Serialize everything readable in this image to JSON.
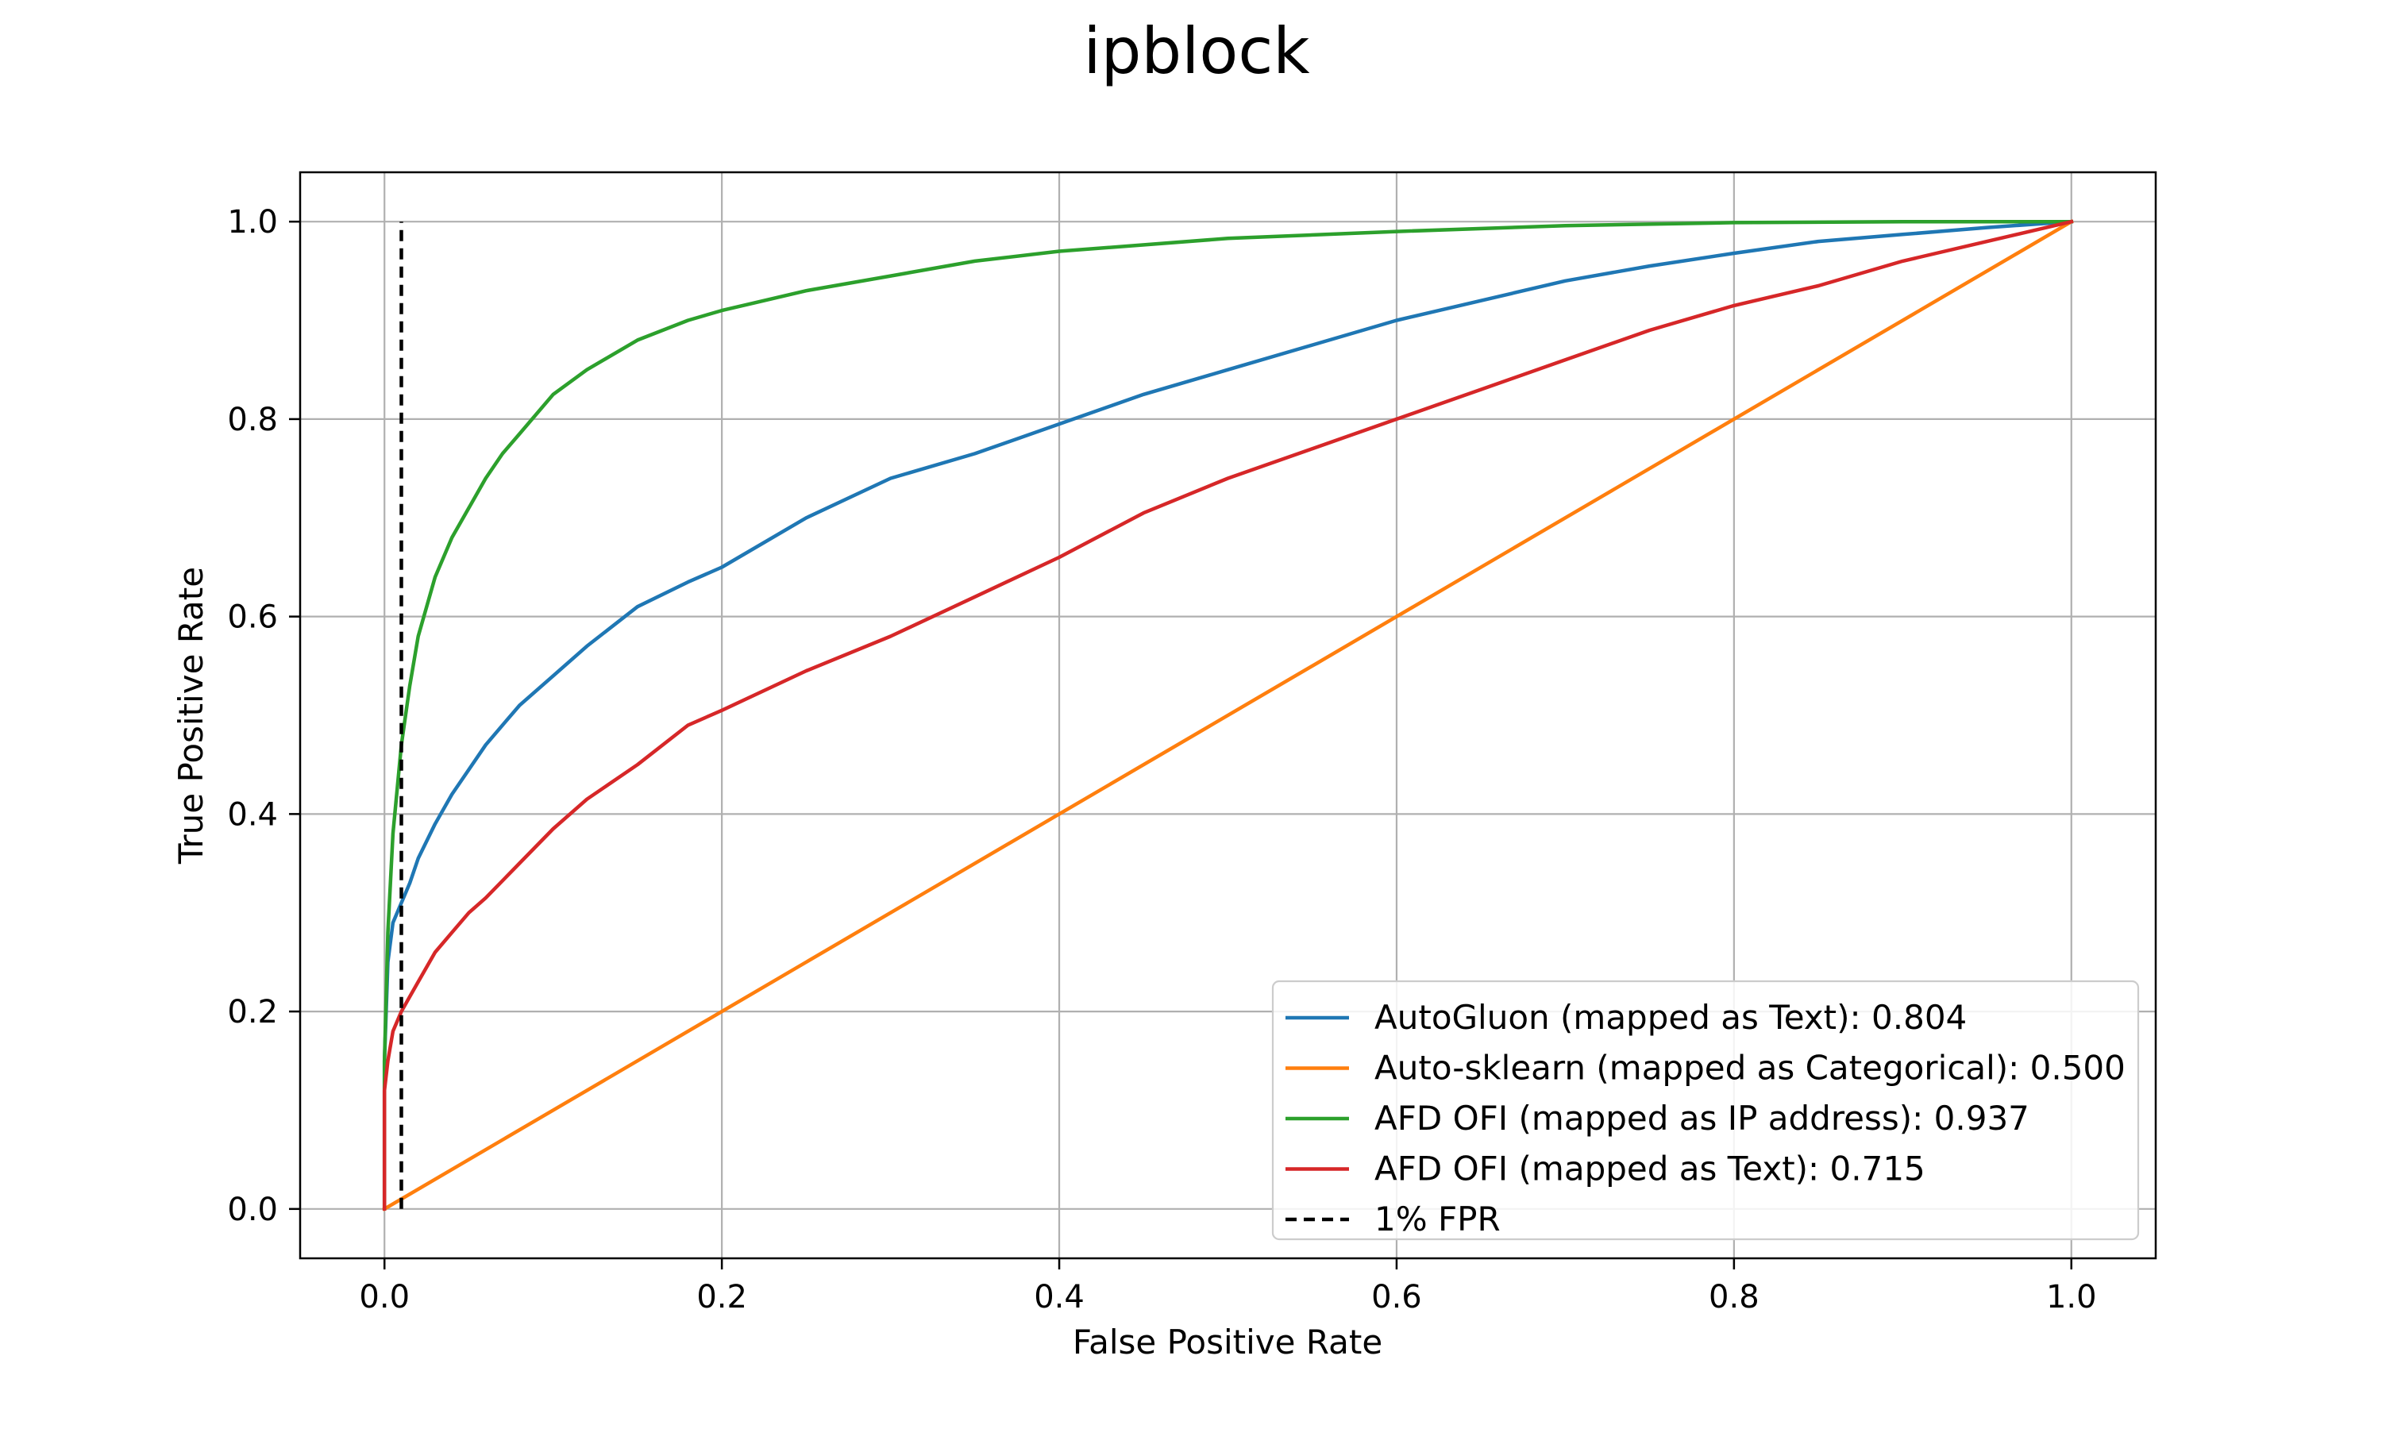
{
  "chart_data": {
    "type": "line",
    "title": "ipblock",
    "xlabel": "False Positive Rate",
    "ylabel": "True Positive Rate",
    "xlim": [
      -0.05,
      1.05
    ],
    "ylim": [
      -0.05,
      1.05
    ],
    "xticks": [
      0.0,
      0.2,
      0.4,
      0.6,
      0.8,
      1.0
    ],
    "yticks": [
      0.0,
      0.2,
      0.4,
      0.6,
      0.8,
      1.0
    ],
    "xtick_labels": [
      "0.0",
      "0.2",
      "0.4",
      "0.6",
      "0.8",
      "1.0"
    ],
    "ytick_labels": [
      "0.0",
      "0.2",
      "0.4",
      "0.6",
      "0.8",
      "1.0"
    ],
    "grid": true,
    "legend_position": "bottom-right",
    "series": [
      {
        "name": "AutoGluon (mapped as Text): 0.804",
        "color": "#1f77b4",
        "dash": "solid",
        "x": [
          0,
          0,
          0.002,
          0.005,
          0.01,
          0.015,
          0.02,
          0.03,
          0.04,
          0.05,
          0.06,
          0.07,
          0.08,
          0.1,
          0.12,
          0.15,
          0.18,
          0.2,
          0.25,
          0.3,
          0.35,
          0.4,
          0.45,
          0.5,
          0.55,
          0.6,
          0.65,
          0.7,
          0.75,
          0.8,
          0.85,
          0.9,
          0.95,
          1.0
        ],
        "y": [
          0,
          0.15,
          0.25,
          0.29,
          0.31,
          0.33,
          0.355,
          0.39,
          0.42,
          0.445,
          0.47,
          0.49,
          0.51,
          0.54,
          0.57,
          0.61,
          0.635,
          0.65,
          0.7,
          0.74,
          0.765,
          0.795,
          0.825,
          0.85,
          0.875,
          0.9,
          0.92,
          0.94,
          0.955,
          0.968,
          0.98,
          0.987,
          0.994,
          1.0
        ]
      },
      {
        "name": "Auto-sklearn (mapped as Categorical): 0.500",
        "color": "#ff7f0e",
        "dash": "solid",
        "x": [
          0,
          1.0
        ],
        "y": [
          0,
          1.0
        ]
      },
      {
        "name": "AFD OFI (mapped as IP address): 0.937",
        "color": "#2ca02c",
        "dash": "solid",
        "x": [
          0,
          0,
          0.002,
          0.005,
          0.01,
          0.015,
          0.02,
          0.03,
          0.04,
          0.05,
          0.06,
          0.07,
          0.08,
          0.1,
          0.12,
          0.15,
          0.18,
          0.2,
          0.25,
          0.3,
          0.35,
          0.4,
          0.5,
          0.6,
          0.7,
          0.8,
          0.9,
          1.0
        ],
        "y": [
          0,
          0.15,
          0.28,
          0.38,
          0.47,
          0.53,
          0.58,
          0.64,
          0.68,
          0.71,
          0.74,
          0.765,
          0.785,
          0.825,
          0.85,
          0.88,
          0.9,
          0.91,
          0.93,
          0.945,
          0.96,
          0.97,
          0.983,
          0.99,
          0.996,
          0.999,
          1.0,
          1.0
        ]
      },
      {
        "name": "AFD OFI (mapped as Text): 0.715",
        "color": "#d62728",
        "dash": "solid",
        "x": [
          0,
          0,
          0.002,
          0.005,
          0.01,
          0.015,
          0.02,
          0.03,
          0.04,
          0.05,
          0.06,
          0.08,
          0.1,
          0.12,
          0.15,
          0.18,
          0.2,
          0.25,
          0.3,
          0.35,
          0.4,
          0.45,
          0.5,
          0.55,
          0.6,
          0.65,
          0.7,
          0.75,
          0.8,
          0.85,
          0.9,
          0.95,
          1.0
        ],
        "y": [
          0,
          0.12,
          0.15,
          0.18,
          0.2,
          0.215,
          0.23,
          0.26,
          0.28,
          0.3,
          0.315,
          0.35,
          0.385,
          0.415,
          0.45,
          0.49,
          0.505,
          0.545,
          0.58,
          0.62,
          0.66,
          0.705,
          0.74,
          0.77,
          0.8,
          0.83,
          0.86,
          0.89,
          0.915,
          0.935,
          0.96,
          0.98,
          1.0
        ]
      },
      {
        "name": "1% FPR",
        "color": "#000000",
        "dash": "dashed",
        "x": [
          0.01,
          0.01
        ],
        "y": [
          0,
          1.0
        ]
      }
    ]
  }
}
